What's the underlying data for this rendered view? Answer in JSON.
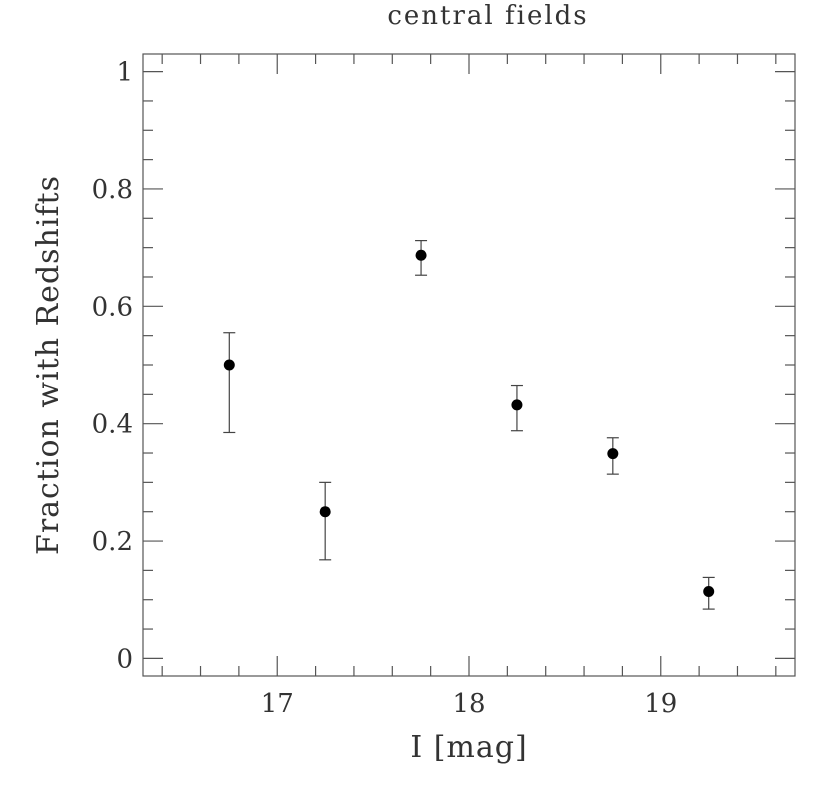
{
  "chart_data": {
    "type": "scatter",
    "title": "central fields",
    "xlabel": "I [mag]",
    "ylabel": "Fraction with Redshifts",
    "xlim": [
      16.3,
      19.7
    ],
    "ylim": [
      -0.03,
      1.03
    ],
    "x_ticks": [
      17,
      18,
      19
    ],
    "y_ticks": [
      0,
      0.2,
      0.4,
      0.6,
      0.8,
      1
    ],
    "x_tick_labels": [
      "17",
      "18",
      "19"
    ],
    "y_tick_labels": [
      "0",
      "0.2",
      "0.4",
      "0.6",
      "0.8",
      "1"
    ],
    "x_minor_step": 0.2,
    "y_minor_step": 0.05,
    "grid": false,
    "error_bars": true,
    "points": [
      {
        "x": 16.75,
        "y": 0.5,
        "y_low": 0.385,
        "y_high": 0.555
      },
      {
        "x": 17.25,
        "y": 0.25,
        "y_low": 0.168,
        "y_high": 0.3
      },
      {
        "x": 17.75,
        "y": 0.687,
        "y_low": 0.653,
        "y_high": 0.712
      },
      {
        "x": 18.25,
        "y": 0.432,
        "y_low": 0.388,
        "y_high": 0.465
      },
      {
        "x": 18.75,
        "y": 0.349,
        "y_low": 0.314,
        "y_high": 0.376
      },
      {
        "x": 19.25,
        "y": 0.114,
        "y_low": 0.084,
        "y_high": 0.138
      }
    ]
  }
}
